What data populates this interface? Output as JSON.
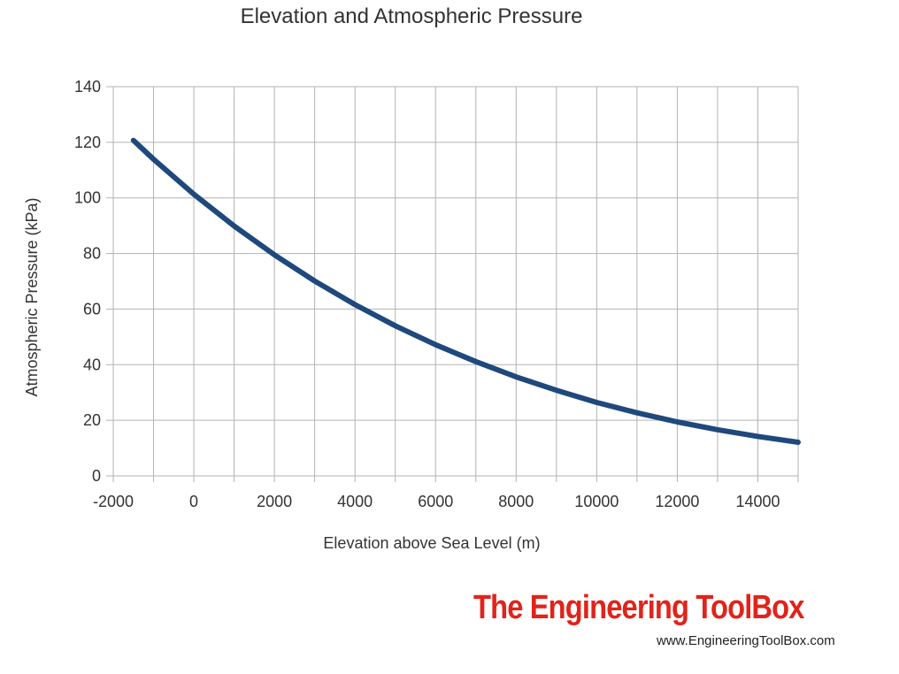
{
  "chart_data": {
    "type": "line",
    "title": "Elevation and Atmospheric Pressure",
    "xlabel": "Elevation above Sea Level (m)",
    "ylabel": "Atmospheric Pressure (kPa)",
    "xlim": [
      -2000,
      15000
    ],
    "ylim": [
      0,
      140
    ],
    "xticks": [
      -2000,
      0,
      2000,
      4000,
      6000,
      8000,
      10000,
      12000,
      14000
    ],
    "yticks": [
      0,
      20,
      40,
      60,
      80,
      100,
      120,
      140
    ],
    "x_minor_step": 1000,
    "grid": true,
    "series": [
      {
        "name": "Atmospheric Pressure",
        "color": "#1f497d",
        "x": [
          -1500,
          -1000,
          0,
          1000,
          2000,
          3000,
          4000,
          5000,
          6000,
          7000,
          8000,
          9000,
          10000,
          11000,
          12000,
          13000,
          14000,
          15000
        ],
        "y": [
          120.7,
          113.9,
          101.3,
          89.9,
          79.5,
          70.1,
          61.6,
          54.0,
          47.2,
          41.1,
          35.6,
          30.8,
          26.4,
          22.7,
          19.4,
          16.6,
          14.2,
          12.1
        ]
      }
    ]
  },
  "brand": {
    "name": "The Engineering ToolBox",
    "url": "www.EngineeringToolBox.com",
    "color": "#e0241b"
  }
}
